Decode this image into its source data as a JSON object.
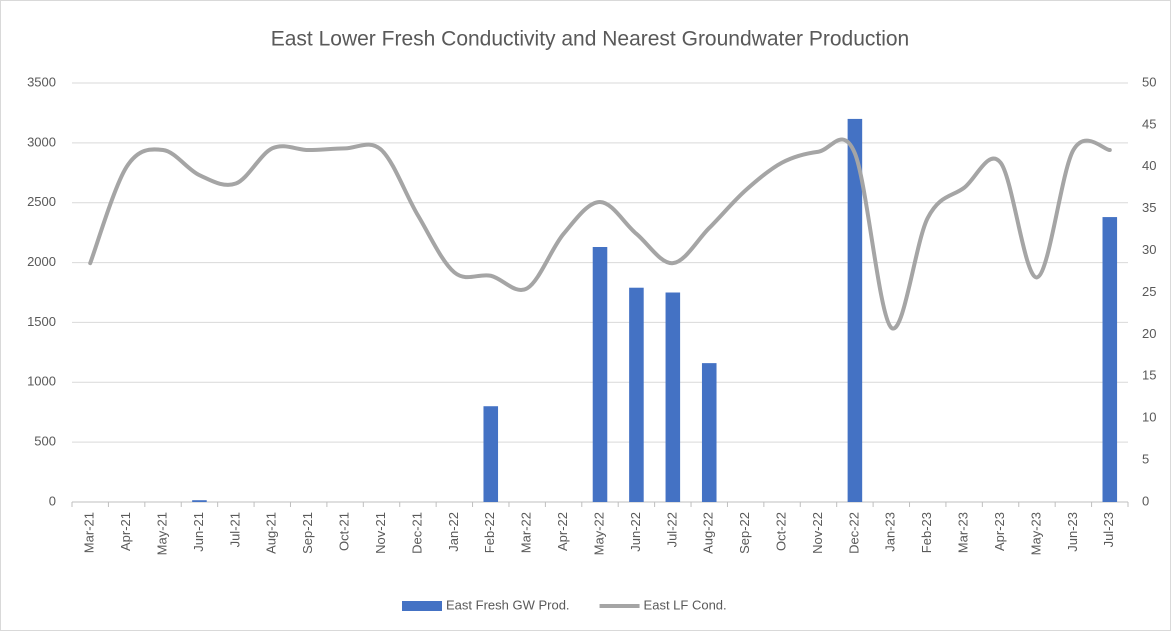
{
  "chart_data": {
    "type": "bar-line",
    "title": "East Lower Fresh Conductivity and Nearest Groundwater Production",
    "categories": [
      "Mar-21",
      "Apr-21",
      "May-21",
      "Jun-21",
      "Jul-21",
      "Aug-21",
      "Sep-21",
      "Oct-21",
      "Nov-21",
      "Dec-21",
      "Jan-22",
      "Feb-22",
      "Mar-22",
      "Apr-22",
      "May-22",
      "Jun-22",
      "Jul-22",
      "Aug-22",
      "Sep-22",
      "Oct-22",
      "Nov-22",
      "Dec-22",
      "Jan-23",
      "Feb-23",
      "Mar-23",
      "Apr-23",
      "May-23",
      "Jun-23",
      "Jul-23"
    ],
    "series": [
      {
        "name": "East Fresh GW Prod.",
        "type": "bar",
        "color": "#4472c4",
        "values": [
          0,
          0,
          0,
          15,
          0,
          0,
          0,
          0,
          0,
          0,
          0,
          800,
          0,
          0,
          2130,
          1790,
          1750,
          1160,
          0,
          0,
          0,
          3200,
          0,
          0,
          0,
          0,
          0,
          0,
          2380
        ]
      },
      {
        "name": "East LF Cond.",
        "type": "line",
        "color": "#a5a5a5",
        "axis": "y2",
        "values": [
          28.5,
          40,
          42,
          39,
          38,
          42.2,
          42,
          42.2,
          42,
          34.2,
          27.4,
          27,
          25.5,
          32,
          35.8,
          32,
          28.5,
          32.7,
          37.2,
          40.5,
          41.8,
          41.6,
          20.8,
          33.9,
          37.5,
          40.5,
          26.8,
          42,
          42
        ]
      }
    ],
    "ylim": [
      0,
      3500
    ],
    "yticks": [
      0,
      500,
      1000,
      1500,
      2000,
      2500,
      3000,
      3500
    ],
    "y2lim": [
      0,
      50
    ],
    "y2ticks": [
      0,
      5,
      10,
      15,
      20,
      25,
      30,
      35,
      40,
      45,
      50
    ],
    "grid": true,
    "legend": "bottom"
  }
}
